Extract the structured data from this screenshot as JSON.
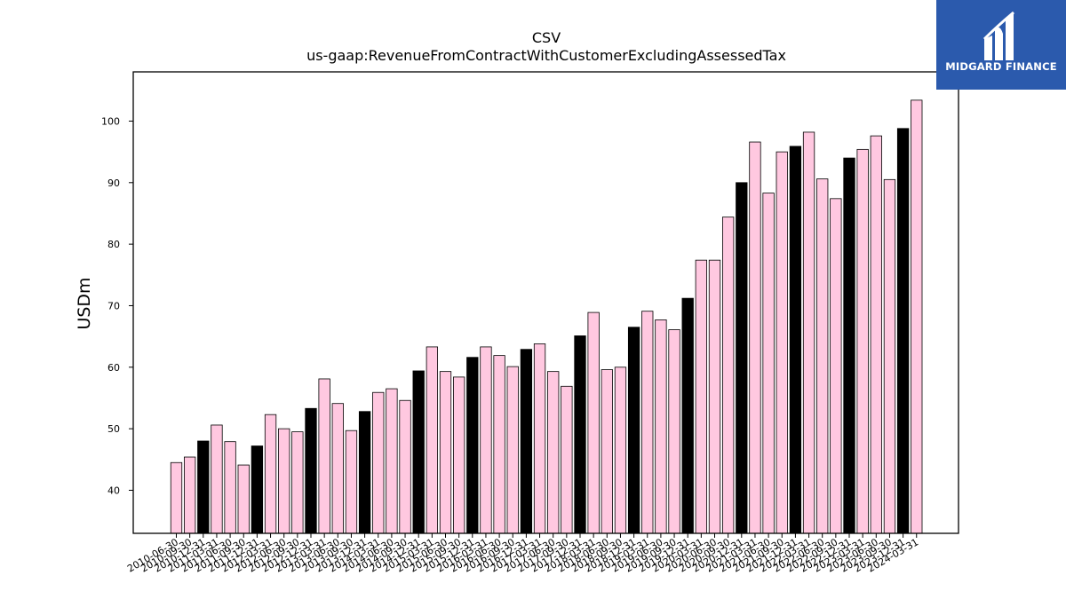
{
  "chart_data": {
    "type": "bar",
    "title": "CSV",
    "subtitle": "us-gaap:RevenueFromContractWithCustomerExcludingAssessedTax",
    "xlabel": "",
    "ylabel": "USDm",
    "ylim": [
      33,
      108
    ],
    "yticks": [
      40,
      50,
      60,
      70,
      80,
      90,
      100
    ],
    "grid": false,
    "categories": [
      "2010-06-30",
      "2010-09-30",
      "2010-12-31",
      "2011-03-31",
      "2011-06-30",
      "2011-09-30",
      "2011-12-31",
      "2012-03-31",
      "2012-06-30",
      "2012-09-30",
      "2012-12-31",
      "2013-03-31",
      "2013-06-30",
      "2013-09-30",
      "2013-12-31",
      "2014-03-31",
      "2014-06-30",
      "2014-09-30",
      "2014-12-31",
      "2015-03-31",
      "2015-06-30",
      "2015-09-30",
      "2015-12-31",
      "2016-03-31",
      "2016-06-30",
      "2016-09-30",
      "2016-12-31",
      "2017-03-31",
      "2017-06-30",
      "2017-09-30",
      "2017-12-31",
      "2018-03-31",
      "2018-06-30",
      "2018-09-30",
      "2018-12-31",
      "2019-03-31",
      "2019-06-30",
      "2019-09-30",
      "2019-12-31",
      "2020-03-31",
      "2020-06-30",
      "2020-09-30",
      "2020-12-31",
      "2021-03-31",
      "2021-06-30",
      "2021-09-30",
      "2021-12-31",
      "2022-03-31",
      "2022-06-30",
      "2022-09-30",
      "2022-12-31",
      "2023-03-31",
      "2023-06-30",
      "2023-09-30",
      "2023-12-31",
      "2024-03-31"
    ],
    "values": [
      44.5,
      45.4,
      48.0,
      50.6,
      47.9,
      44.1,
      47.2,
      52.3,
      50.0,
      49.5,
      53.3,
      58.1,
      54.1,
      49.7,
      52.8,
      55.9,
      56.5,
      54.6,
      59.4,
      63.3,
      59.3,
      58.4,
      61.6,
      63.3,
      61.9,
      60.1,
      62.9,
      63.8,
      59.3,
      56.9,
      65.1,
      68.9,
      59.6,
      60.0,
      66.5,
      69.1,
      67.7,
      66.1,
      71.2,
      77.4,
      77.4,
      84.4,
      90.0,
      96.6,
      88.3,
      95.0,
      95.9,
      98.2,
      90.6,
      87.4,
      94.0,
      95.4,
      97.6,
      90.5,
      98.8,
      103.4
    ],
    "colors": {
      "quarter": "#ffc8e0",
      "year_end": "#000000",
      "edge": "#000000"
    }
  },
  "logo": {
    "text": "MIDGARD FINANCE"
  }
}
